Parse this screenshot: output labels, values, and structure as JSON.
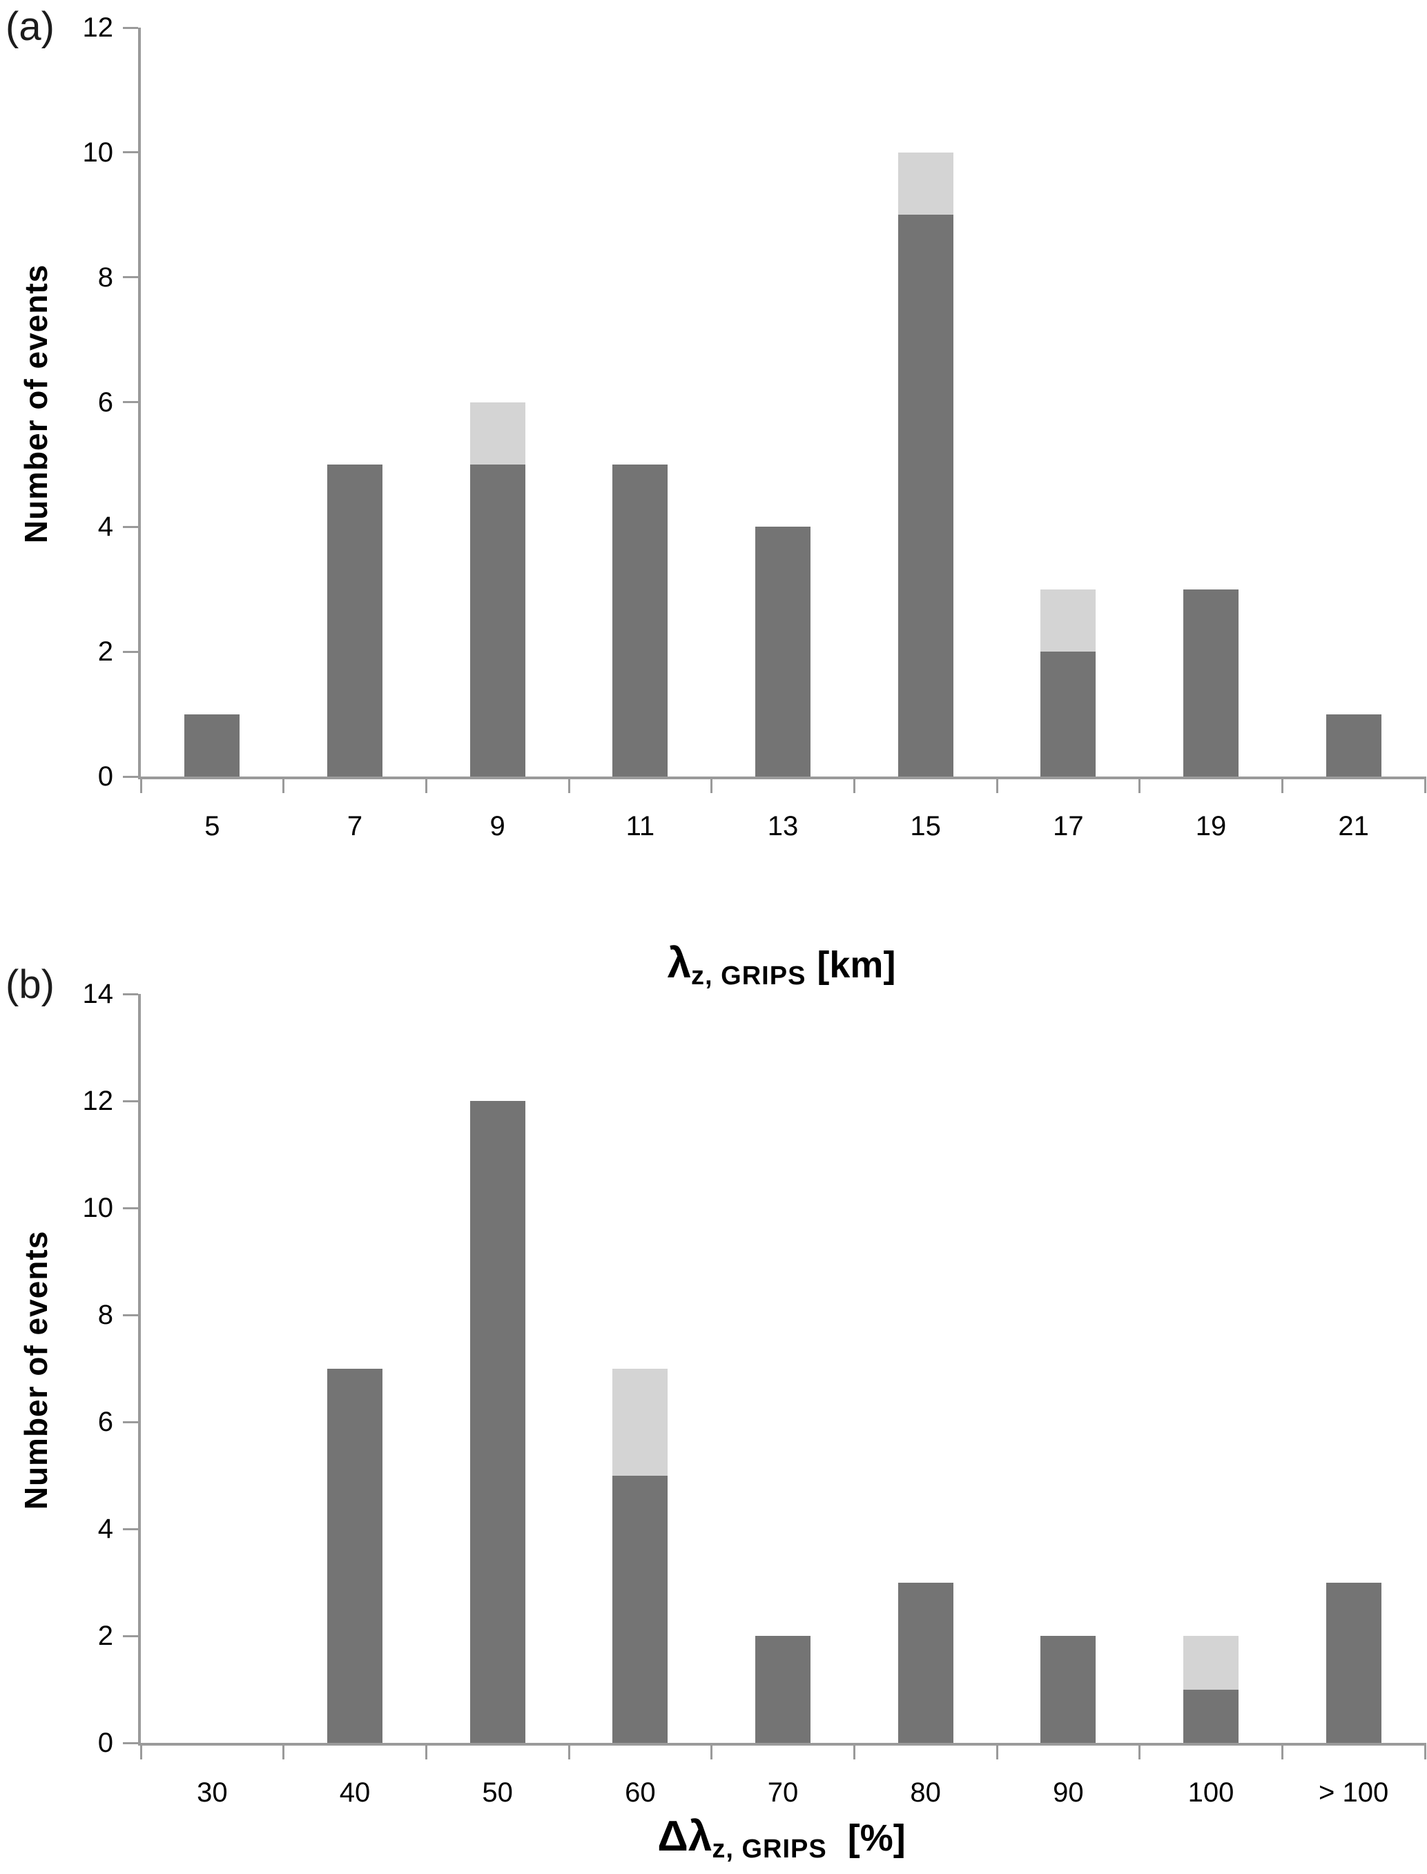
{
  "figure": {
    "background": "#ffffff",
    "bar_dark_color": "#747474",
    "bar_light_color": "#d4d4d4",
    "axis_color": "#9a9a9a",
    "text_color": "#000000"
  },
  "chart_data": [
    {
      "type": "bar",
      "stacked": true,
      "panel_label": "(a)",
      "ylabel": "Number of events",
      "xlabel": {
        "prefix": "λ",
        "subscript": "z, GRIPS",
        "suffix": "[km]"
      },
      "categories": [
        "5",
        "7",
        "9",
        "11",
        "13",
        "15",
        "17",
        "19",
        "21"
      ],
      "series": [
        {
          "name": "dark-gray",
          "color": "#747474",
          "values": [
            1,
            5,
            5,
            5,
            4,
            9,
            2,
            3,
            1
          ]
        },
        {
          "name": "light-gray",
          "color": "#d4d4d4",
          "values": [
            0,
            0,
            1,
            0,
            0,
            1,
            1,
            0,
            0
          ]
        }
      ],
      "ylim": [
        0,
        12
      ],
      "ytick_step": 2,
      "grid": false,
      "legend": "none"
    },
    {
      "type": "bar",
      "stacked": true,
      "panel_label": "(b)",
      "ylabel": "Number of events",
      "xlabel": {
        "prefix": "Δλ",
        "subscript": "z, GRIPS",
        "suffix": "[%]"
      },
      "categories": [
        "30",
        "40",
        "50",
        "60",
        "70",
        "80",
        "90",
        "100",
        "> 100"
      ],
      "series": [
        {
          "name": "dark-gray",
          "color": "#747474",
          "values": [
            0,
            7,
            12,
            5,
            2,
            3,
            2,
            1,
            3
          ]
        },
        {
          "name": "light-gray",
          "color": "#d4d4d4",
          "values": [
            0,
            0,
            0,
            2,
            0,
            0,
            0,
            1,
            0
          ]
        }
      ],
      "ylim": [
        0,
        14
      ],
      "ytick_step": 2,
      "grid": false,
      "legend": "none"
    }
  ]
}
